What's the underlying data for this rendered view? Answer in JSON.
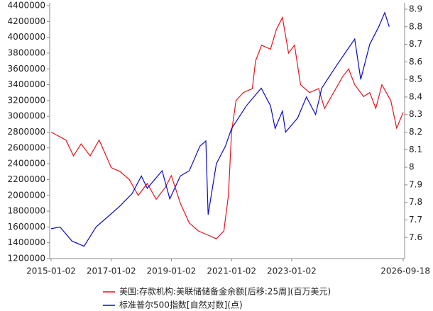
{
  "chart_data": {
    "type": "line",
    "xlim": [
      "2015-01-02",
      "2026-09-18"
    ],
    "xticks": [
      "2015-01-02",
      "2017-01-02",
      "2019-01-02",
      "2021-01-02",
      "2023-01-02",
      "2026-09-18"
    ],
    "ylim": [
      1200000,
      4400000
    ],
    "yticks": [
      1200000,
      1400000,
      1600000,
      1800000,
      2000000,
      2200000,
      2400000,
      2600000,
      2800000,
      3000000,
      3200000,
      3400000,
      3600000,
      3800000,
      4000000,
      4200000,
      4400000
    ],
    "y2lim": [
      7.48,
      8.92
    ],
    "y2ticks": [
      7.6,
      7.7,
      7.8,
      7.9,
      8.0,
      8.1,
      8.2,
      8.3,
      8.4,
      8.5,
      8.6,
      8.7,
      8.8,
      8.9
    ],
    "series": [
      {
        "name": "美国:存款机构:美联储储备金余额[后移:25周](百万美元)",
        "color": "#e8141b",
        "x": [
          "2015-01-02",
          "2015-07-01",
          "2015-10-01",
          "2016-01-02",
          "2016-04-20",
          "2016-08-08",
          "2017-01-02",
          "2017-04-20",
          "2017-08-08",
          "2017-11-25",
          "2018-03-15",
          "2018-07-01",
          "2018-10-20",
          "2019-01-02",
          "2019-04-20",
          "2019-08-08",
          "2019-11-25",
          "2020-03-15",
          "2020-07-01",
          "2020-10-01",
          "2020-11-25",
          "2021-01-02",
          "2021-02-25",
          "2021-05-25",
          "2021-09-12",
          "2021-10-20",
          "2022-01-02",
          "2022-04-20",
          "2022-07-01",
          "2022-09-12",
          "2022-11-25",
          "2023-02-06",
          "2023-04-20",
          "2023-08-08",
          "2023-11-25",
          "2024-02-06",
          "2024-05-25",
          "2024-09-12",
          "2024-11-25",
          "2025-02-06",
          "2025-05-25",
          "2025-08-08",
          "2025-10-20",
          "2026-01-02",
          "2026-04-20",
          "2026-07-01",
          "2026-09-18"
        ],
        "values": [
          2800000,
          2700000,
          2500000,
          2650000,
          2500000,
          2700000,
          2350000,
          2300000,
          2200000,
          2000000,
          2150000,
          1950000,
          2100000,
          2250000,
          1900000,
          1650000,
          1550000,
          1500000,
          1450000,
          1550000,
          2000000,
          2800000,
          3200000,
          3300000,
          3350000,
          3700000,
          3900000,
          3850000,
          4100000,
          4250000,
          3800000,
          3900000,
          3400000,
          3300000,
          3350000,
          3100000,
          3300000,
          3500000,
          3600000,
          3400000,
          3250000,
          3300000,
          3100000,
          3400000,
          3200000,
          2850000,
          3050000
        ]
      },
      {
        "name": "标准普尔500指数[自然对数](点)",
        "color": "#0a0ad0",
        "axis": "y2",
        "x": [
          "2015-01-02",
          "2015-04-20",
          "2015-09-12",
          "2016-02-06",
          "2016-07-01",
          "2016-11-25",
          "2017-04-20",
          "2017-09-12",
          "2018-01-02",
          "2018-03-15",
          "2018-09-12",
          "2018-12-14",
          "2019-04-20",
          "2019-08-08",
          "2019-12-14",
          "2020-02-25",
          "2020-03-23",
          "2020-07-01",
          "2020-10-20",
          "2021-01-02",
          "2021-07-01",
          "2021-12-28",
          "2022-04-20",
          "2022-06-15",
          "2022-09-12",
          "2022-10-20",
          "2023-03-15",
          "2023-07-01",
          "2023-10-20",
          "2024-01-02",
          "2024-07-01",
          "2024-11-25",
          "2025-02-06",
          "2025-04-20",
          "2025-08-08",
          "2025-11-25",
          "2026-02-06",
          "2026-04-01"
        ],
        "values": [
          7.65,
          7.66,
          7.58,
          7.55,
          7.66,
          7.72,
          7.78,
          7.85,
          7.95,
          7.88,
          7.98,
          7.82,
          7.95,
          7.98,
          8.12,
          8.15,
          7.73,
          8.02,
          8.12,
          8.22,
          8.35,
          8.45,
          8.35,
          8.22,
          8.32,
          8.2,
          8.28,
          8.4,
          8.3,
          8.45,
          8.58,
          8.68,
          8.73,
          8.5,
          8.7,
          8.8,
          8.88,
          8.8
        ]
      }
    ]
  }
}
